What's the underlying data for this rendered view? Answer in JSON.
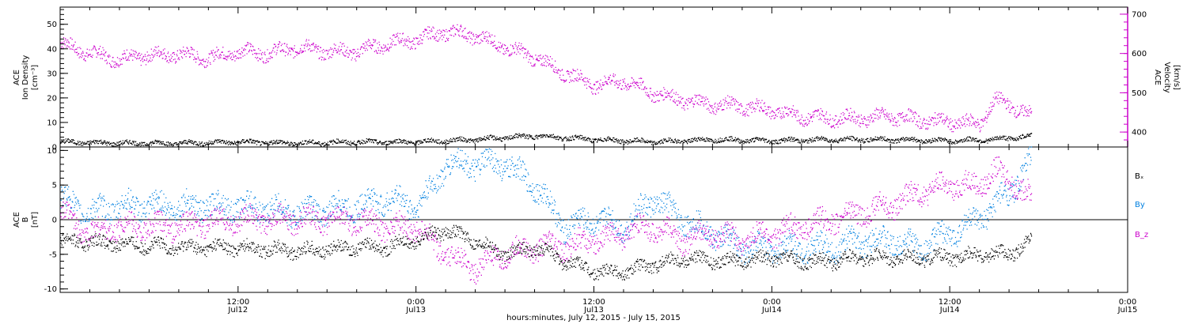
{
  "chart_data": [
    {
      "type": "scatter",
      "panel": "ace-plasma",
      "left_axis": {
        "label_lines": [
          "ACE",
          "Ion Density",
          "[cm⁻³]"
        ],
        "ylim": [
          0,
          57
        ],
        "ticks": [
          0,
          10,
          20,
          30,
          40,
          50
        ],
        "tick_labels": [
          "0",
          "10",
          "20",
          "30",
          "40",
          "50"
        ]
      },
      "right_axis": {
        "label_lines": [
          "ACE",
          "Velocity",
          "[km/s]"
        ],
        "ylim": [
          362,
          718
        ],
        "ticks": [
          400,
          500,
          600,
          700
        ],
        "tick_labels": [
          "400",
          "500",
          "600",
          "700"
        ],
        "color": "#cc00cc"
      },
      "series": [
        {
          "color": "#000000",
          "axis": "left",
          "x_hours": [
            0,
            4,
            8,
            12,
            16,
            20,
            24,
            28,
            32,
            36,
            40,
            44,
            48,
            52,
            56,
            60,
            63,
            65.5
          ],
          "values": [
            2,
            1.5,
            1.5,
            2,
            1.5,
            2,
            2,
            3,
            4.5,
            3,
            2,
            3,
            2.5,
            3,
            3,
            2.5,
            3,
            4.5
          ]
        },
        {
          "color": "#cc00cc",
          "axis": "right",
          "x_hours": [
            0,
            2,
            4,
            6,
            8,
            10,
            12,
            14,
            16,
            18,
            20,
            22,
            24,
            26,
            28,
            30,
            32,
            34,
            36,
            38,
            40,
            42,
            44,
            46,
            48,
            50,
            52,
            54,
            56,
            58,
            60,
            62,
            63,
            64,
            65.5
          ],
          "values": [
            625,
            600,
            585,
            595,
            598,
            588,
            605,
            600,
            615,
            605,
            605,
            625,
            635,
            655,
            645,
            615,
            590,
            550,
            520,
            530,
            500,
            480,
            470,
            465,
            455,
            440,
            435,
            435,
            440,
            430,
            425,
            420,
            480,
            470,
            440
          ]
        }
      ]
    },
    {
      "type": "scatter",
      "panel": "ace-magnetic-field",
      "left_axis": {
        "label_lines": [
          "ACE",
          "B",
          "[nT]"
        ],
        "ylim": [
          -10.5,
          10.5
        ],
        "ticks": [
          -10,
          -5,
          0,
          5,
          10
        ],
        "tick_labels": [
          "-10",
          "-5",
          "0",
          "5",
          "10"
        ]
      },
      "legend": [
        {
          "label": "Bₓ",
          "color": "#000000"
        },
        {
          "label": "By",
          "color": "#0080e0"
        },
        {
          "label": "B_z",
          "color": "#cc00cc"
        }
      ],
      "series": [
        {
          "name": "Bx",
          "color": "#000000",
          "x_hours": [
            0,
            4,
            8,
            12,
            16,
            20,
            22,
            24,
            26,
            28,
            30,
            32,
            34,
            36,
            38,
            40,
            42,
            44,
            46,
            48,
            50,
            52,
            54,
            56,
            58,
            60,
            62,
            64,
            65.5
          ],
          "values": [
            -3,
            -3.5,
            -4,
            -4,
            -4.5,
            -4,
            -4,
            -3,
            -1.5,
            -3,
            -5,
            -4,
            -6,
            -7.5,
            -7.5,
            -6.5,
            -5.5,
            -6,
            -6,
            -5.5,
            -6,
            -6,
            -5.5,
            -5.5,
            -5.5,
            -5.5,
            -5,
            -5,
            -3
          ]
        },
        {
          "name": "By",
          "color": "#0080e0",
          "x_hours": [
            0,
            2,
            4,
            8,
            12,
            16,
            20,
            22,
            24,
            25,
            26,
            28,
            30,
            32,
            34,
            36,
            38,
            40,
            42,
            44,
            46,
            48,
            50,
            52,
            54,
            56,
            58,
            60,
            62,
            64,
            65.5
          ],
          "values": [
            3,
            1,
            2,
            2,
            2,
            1,
            2,
            3,
            2,
            4,
            8,
            8,
            8,
            5,
            -1,
            0,
            -1,
            3,
            0,
            -2,
            -4,
            -4,
            -4,
            -4,
            -3,
            -3,
            -4,
            -2,
            0,
            4,
            8.5
          ]
        },
        {
          "name": "Bz",
          "color": "#cc00cc",
          "x_hours": [
            0,
            2,
            4,
            8,
            12,
            16,
            20,
            22,
            24,
            26,
            28,
            30,
            32,
            34,
            36,
            38,
            40,
            42,
            44,
            46,
            48,
            50,
            52,
            54,
            56,
            58,
            60,
            62,
            63,
            64,
            65.5
          ],
          "values": [
            1,
            -2,
            -1,
            -1,
            0,
            0,
            0,
            -1,
            -1,
            -5,
            -7,
            -5,
            -4,
            -4,
            -3,
            -2,
            -1,
            -3,
            -2,
            -3,
            -2,
            -1,
            0,
            1,
            2,
            4,
            5,
            5,
            7,
            6,
            3
          ]
        }
      ]
    }
  ],
  "x_axis": {
    "range_hours": [
      0,
      72
    ],
    "ticks": [
      {
        "hours": 12,
        "time": "12:00",
        "date": "Jul12"
      },
      {
        "hours": 24,
        "time": "0:00",
        "date": "Jul13"
      },
      {
        "hours": 36,
        "time": "12:00",
        "date": "Jul13"
      },
      {
        "hours": 48,
        "time": "0:00",
        "date": "Jul14"
      },
      {
        "hours": 60,
        "time": "12:00",
        "date": "Jul14"
      },
      {
        "hours": 72,
        "time": "0:00",
        "date": "Jul15"
      }
    ],
    "title": "hours:minutes, July 12, 2015 - July 15, 2015"
  }
}
